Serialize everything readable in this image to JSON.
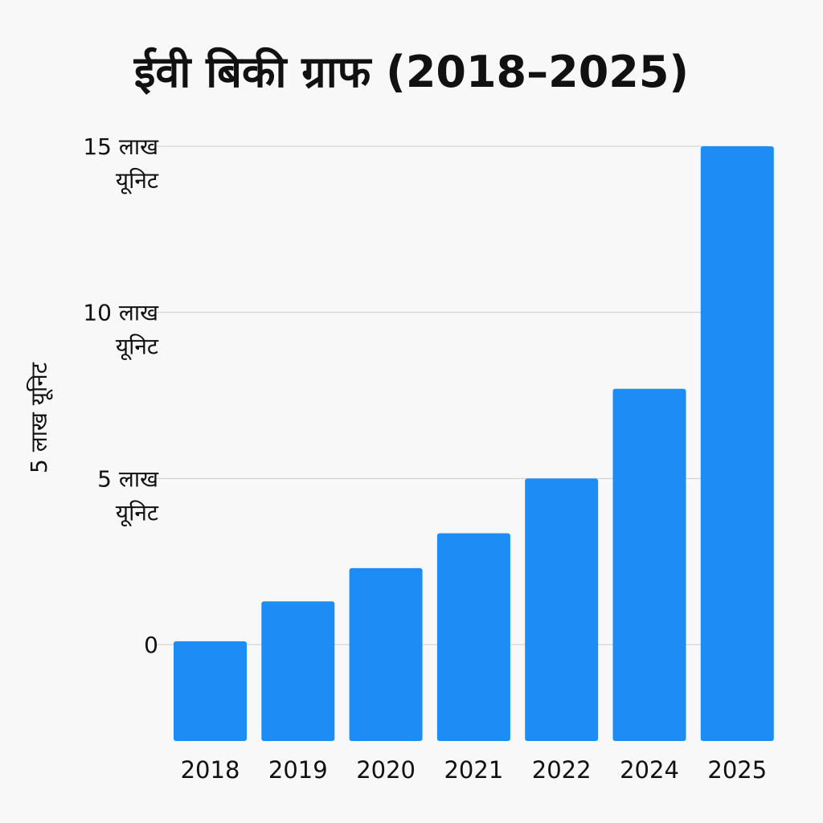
{
  "chart_data": {
    "type": "bar",
    "title": "ईवी बिकी ग्राफ (2018–2025)",
    "ylabel": "5 लाख यूनिट",
    "xlabel": "",
    "categories": [
      "2018",
      "2019",
      "2020",
      "2021",
      "2022",
      "2024",
      "2025"
    ],
    "values": [
      0.1,
      1.3,
      2.3,
      3.35,
      5.0,
      7.7,
      15.0
    ],
    "ylim": [
      0,
      15
    ],
    "grid": true,
    "bar_color": "#1e8cf5",
    "gridline_color": "#cccccc",
    "y_ticks": [
      {
        "value": 0,
        "label_lines": [
          "0"
        ]
      },
      {
        "value": 5,
        "label_lines": [
          "5 लाख",
          "यूनिट"
        ]
      },
      {
        "value": 10,
        "label_lines": [
          "10 लाख",
          "यूनिट"
        ]
      },
      {
        "value": 15,
        "label_lines": [
          "15 लाख",
          "यूनिट"
        ]
      }
    ]
  }
}
